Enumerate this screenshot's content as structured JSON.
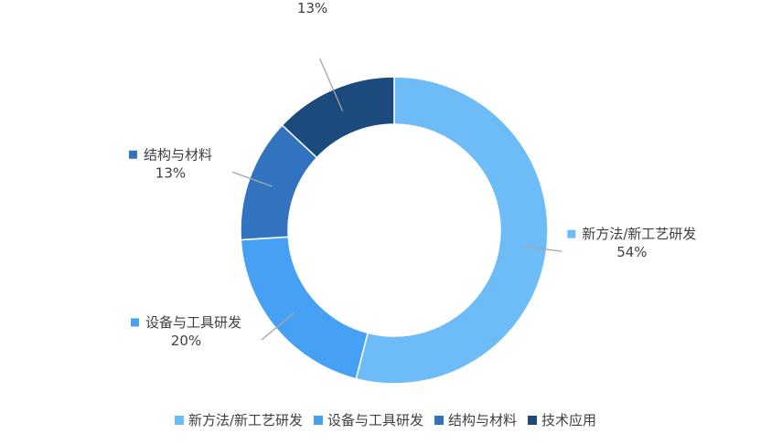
{
  "chart_data": {
    "type": "donut",
    "categories": [
      "新方法/新工艺研发",
      "设备与工具研发",
      "结构与材料",
      "技术应用"
    ],
    "values": [
      54,
      20,
      13,
      13
    ],
    "value_labels": [
      "54%",
      "20%",
      "13%",
      "13%"
    ],
    "colors": [
      "#6EBCF7",
      "#46A0F4",
      "#3173BE",
      "#1D4A7C"
    ],
    "start_angle_deg": 0,
    "direction": "clockwise",
    "legend_position": "bottom",
    "title": ""
  }
}
